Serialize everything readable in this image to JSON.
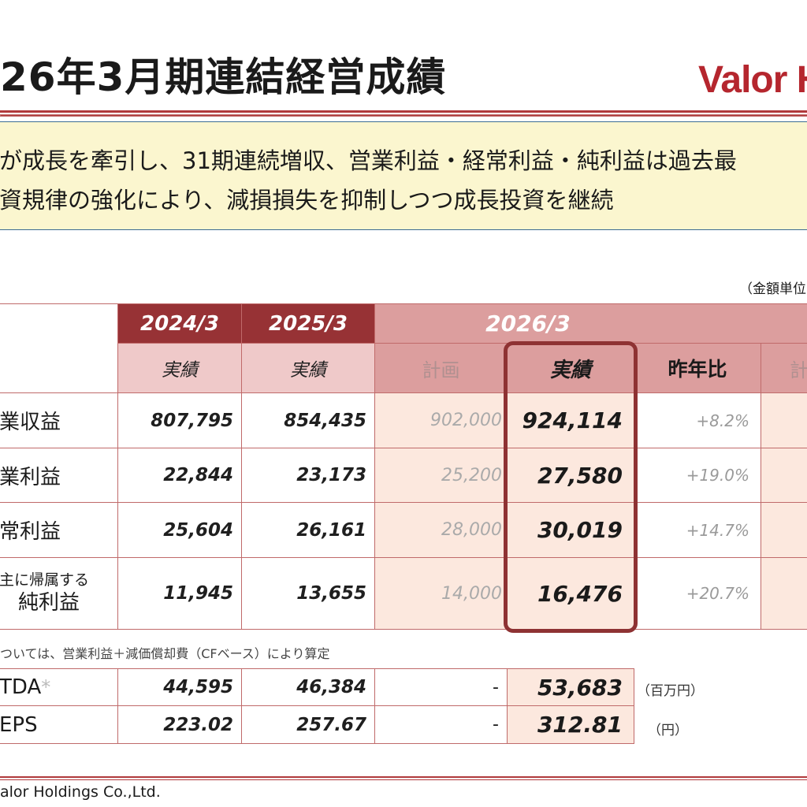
{
  "header": {
    "title": "26年3月期連結経営成績",
    "logo_text": "Valor H"
  },
  "summary": {
    "line1": "が成長を牽引し、31期連続増収、営業利益・経常利益・純利益は過去最",
    "line2": "資規律の強化により、減損損失を抑制しつつ成長投資を継続"
  },
  "unit_note": "（金額単位",
  "table": {
    "years": {
      "y2024": "2024/3",
      "y2025": "2025/3",
      "y2026": "2026/3"
    },
    "sub": {
      "actual_2024": "実績",
      "actual_2025": "実績",
      "plan": "計画",
      "actual_2026": "実績",
      "yoy": "昨年比",
      "cut": "計"
    },
    "rows": [
      {
        "label": "業収益",
        "v2024": "807,795",
        "v2025": "854,435",
        "plan": "902,000",
        "actual": "924,114",
        "yoy": "+8.2%"
      },
      {
        "label": "業利益",
        "v2024": "22,844",
        "v2025": "23,173",
        "plan": "25,200",
        "actual": "27,580",
        "yoy": "+19.0%"
      },
      {
        "label": "常利益",
        "v2024": "25,604",
        "v2025": "26,161",
        "plan": "28,000",
        "actual": "30,019",
        "yoy": "+14.7%"
      },
      {
        "label_small": "主に帰属する",
        "label": "純利益",
        "v2024": "11,945",
        "v2025": "13,655",
        "plan": "14,000",
        "actual": "16,476",
        "yoy": "+20.7%"
      }
    ],
    "footnote": "ついては、営業利益＋減価償却費（CFベース）により算定",
    "extra_rows": [
      {
        "label": "TDA",
        "asterisk": "*",
        "v2024": "44,595",
        "v2025": "46,384",
        "plan": "-",
        "actual": "53,683",
        "unit": "（百万円）"
      },
      {
        "label": "EPS",
        "v2024": "223.02",
        "v2025": "257.67",
        "plan": "-",
        "actual": "312.81",
        "unit": "（円）"
      }
    ]
  },
  "footer": "alor Holdings Co.,Ltd.",
  "colors": {
    "accent": "#973235",
    "header_pink": "#dc9e9e",
    "summary_bg": "#fbf6cf",
    "logo": "#b5262e"
  }
}
